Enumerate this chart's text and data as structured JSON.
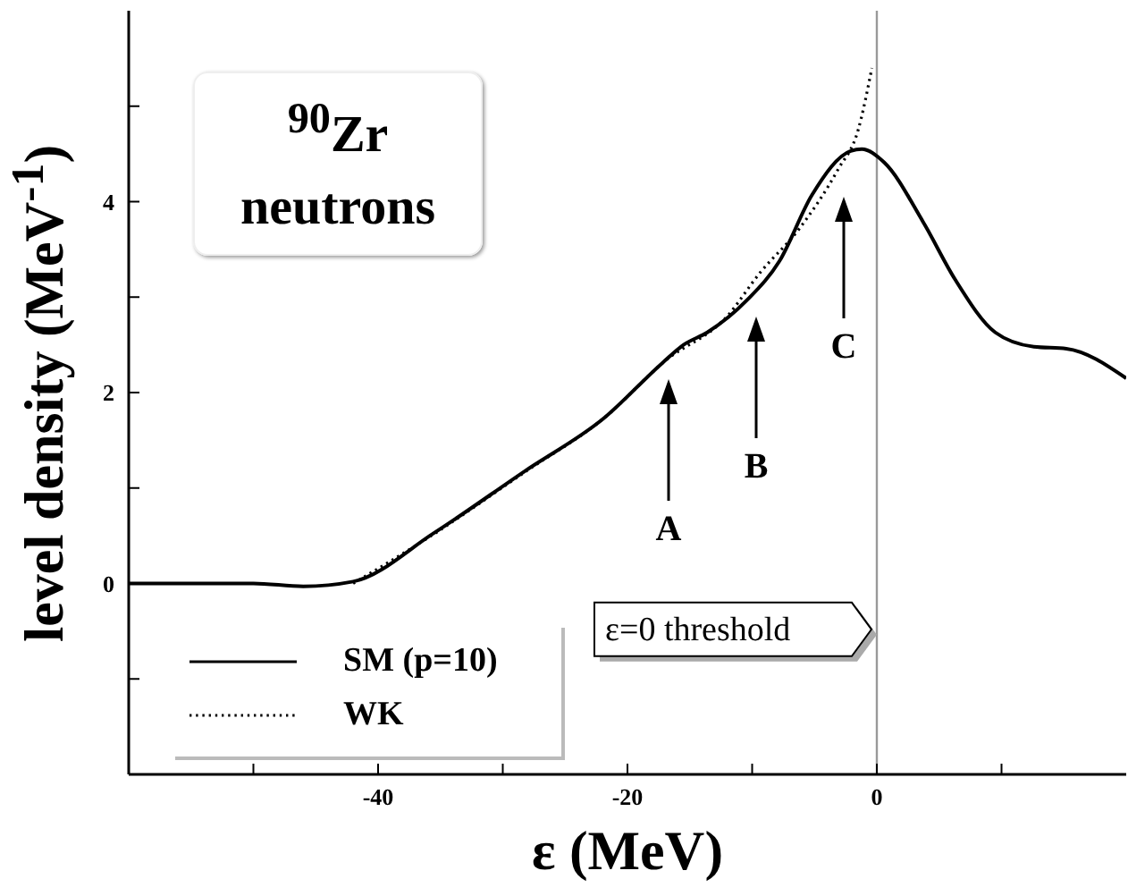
{
  "chart_data": {
    "type": "line",
    "title": "$^{90}$Zr neutrons",
    "xlabel": "ε (MeV)",
    "ylabel": "level density (MeV$^{-1}$)",
    "xlim": [
      -60,
      20
    ],
    "xticks": [
      {
        "value": -50,
        "label": null
      },
      -40,
      {
        "value": -30,
        "label": null
      },
      -20,
      {
        "value": -10,
        "label": null
      },
      0,
      {
        "value": 10,
        "label": null
      }
    ],
    "ylim": [
      -2,
      6
    ],
    "yticks": [
      {
        "value": -1,
        "label": null
      },
      0,
      {
        "value": 1,
        "label": null
      },
      2,
      {
        "value": 3,
        "label": null
      },
      4,
      {
        "value": 5,
        "label": null
      }
    ],
    "legend": "bottom left",
    "marker": "none",
    "ref_lines": [
      {
        "axis": "x",
        "value": 0,
        "label": "ε=0 threshold",
        "color": "#999999"
      }
    ],
    "annotations": [
      "A",
      "B",
      "C"
    ],
    "series": [
      {
        "name": "SM (p=10)",
        "color": "#000000",
        "line_style": "solid",
        "x": [
          -60,
          -50,
          -46,
          -42,
          -35.5,
          -28.2,
          -21.9,
          -17.2,
          -15.5,
          -13.6,
          -10.4,
          -7.8,
          -5.2,
          -2.1,
          -1.2,
          0.6,
          3.7,
          6.3,
          9.5,
          12.6,
          15.2,
          20
        ],
        "values": [
          0,
          0,
          -0.03,
          0.02,
          0.53,
          1.18,
          1.73,
          2.31,
          2.5,
          2.63,
          2.97,
          3.38,
          4.07,
          4.53,
          4.55,
          4.41,
          3.79,
          3.18,
          2.63,
          2.48,
          2.46,
          2.15
        ]
      },
      {
        "name": "WK",
        "color": "#000000",
        "line_style": "dotted",
        "x": [
          -42,
          -35.5,
          -28.2,
          -21.9,
          -17,
          -12,
          -9.4,
          -6.2,
          -3.1,
          -1.5,
          -0.4
        ],
        "values": [
          0,
          0.52,
          1.17,
          1.73,
          2.33,
          2.8,
          3.25,
          3.72,
          4.34,
          4.75,
          5.4
        ]
      }
    ]
  }
}
